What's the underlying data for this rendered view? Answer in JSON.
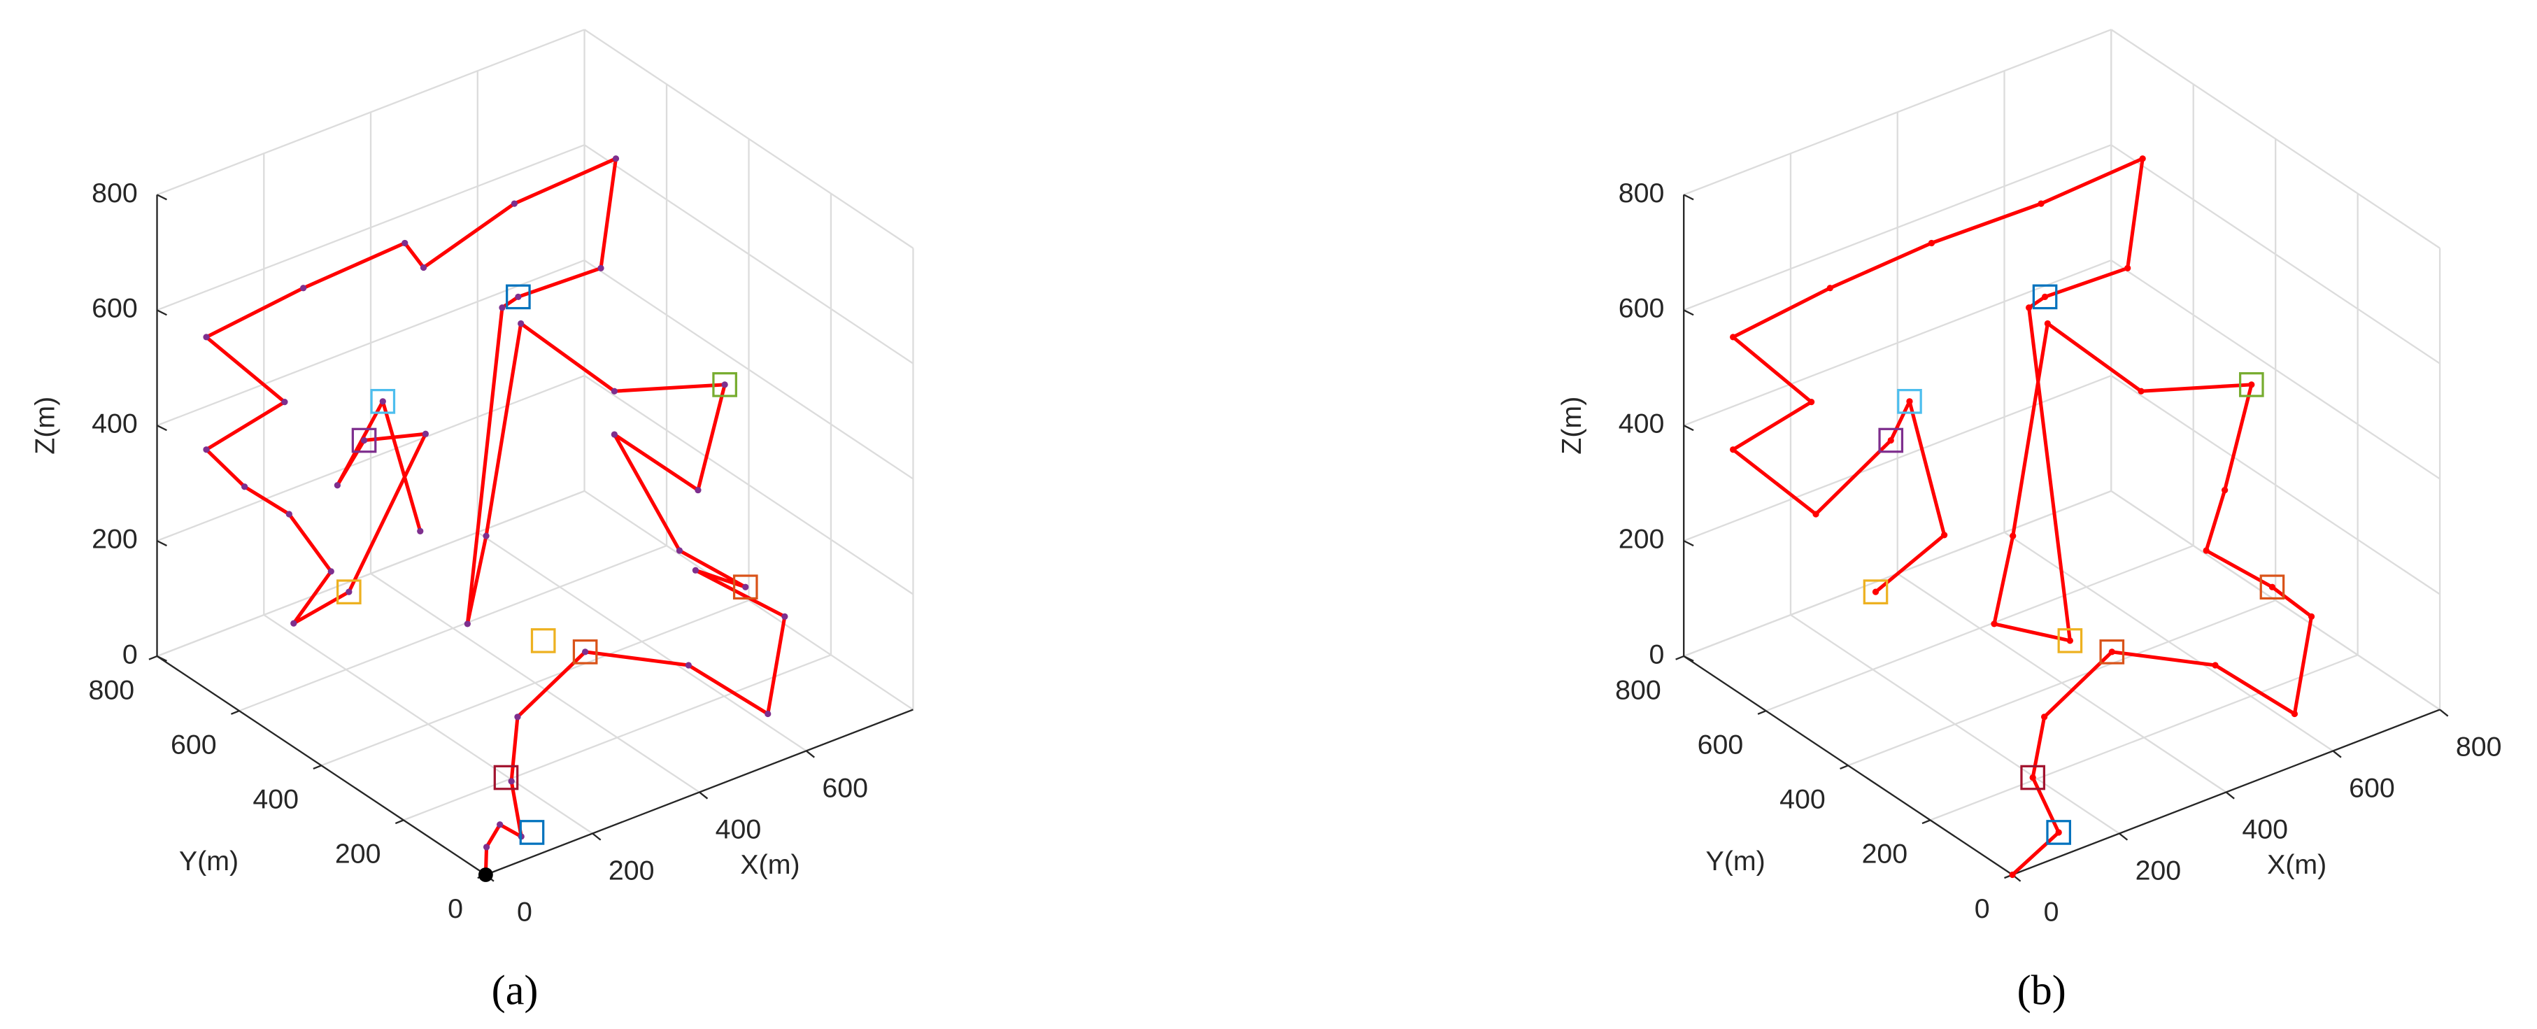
{
  "chart_data": [
    {
      "type": "line3d",
      "label": "(a)",
      "xlabel": "X(m)",
      "ylabel": "Y(m)",
      "zlabel": "Z(m)",
      "xlim": [
        0,
        800
      ],
      "ylim": [
        0,
        800
      ],
      "zlim": [
        0,
        800
      ],
      "xticks": [
        0,
        200,
        400,
        600
      ],
      "yticks": [
        0,
        200,
        400,
        600,
        800
      ],
      "zticks": [
        0,
        200,
        400,
        600,
        800
      ],
      "grid": true,
      "series": [
        {
          "color": "#ff0000",
          "marker_color": "#7e2f8e",
          "x": [
            0,
            40,
            65,
            105,
            125,
            175,
            340,
            495,
            605,
            675,
            585,
            640,
            555,
            510,
            705,
            755,
            510,
            335,
            270,
            235,
            300,
            330,
            600,
            705,
            515,
            345,
            310,
            120,
            0,
            85,
            0,
            10,
            55,
            95,
            25,
            90,
            195,
            80,
            30,
            115,
            185
          ],
          "y": [
            0,
            50,
            50,
            50,
            100,
            150,
            200,
            150,
            100,
            150,
            250,
            200,
            250,
            350,
            400,
            400,
            350,
            350,
            350,
            350,
            350,
            350,
            500,
            600,
            600,
            600,
            600,
            600,
            680,
            600,
            680,
            600,
            550,
            500,
            500,
            450,
            400,
            400,
            400,
            400,
            400
          ],
          "z": [
            0,
            10,
            40,
            5,
            70,
            140,
            170,
            115,
            15,
            135,
            200,
            175,
            245,
            415,
            225,
            390,
            490,
            670,
            325,
            185,
            710,
            718,
            600,
            705,
            695,
            645,
            700,
            690,
            610,
            505,
            415,
            385,
            345,
            255,
            190,
            245,
            505,
            535,
            475,
            590,
            340
          ]
        }
      ],
      "waypoints": {
        "x": [
          125,
          115,
          340,
          300,
          640,
          755,
          330,
          115,
          80,
          90
        ],
        "y": [
          50,
          100,
          200,
          250,
          200,
          400,
          350,
          400,
          400,
          450
        ],
        "z": [
          5,
          80,
          170,
          180,
          175,
          390,
          718,
          590,
          535,
          245
        ],
        "colors": [
          "#0072bd",
          "#a2142f",
          "#d95319",
          "#edb120",
          "#d95319",
          "#77ac30",
          "#0072bd",
          "#4dbeee",
          "#7e2f8e",
          "#edb120"
        ]
      },
      "start": {
        "x": 0,
        "y": 0,
        "z": 0,
        "color": "#000000"
      }
    },
    {
      "type": "line3d",
      "label": "(b)",
      "xlabel": "X(m)",
      "ylabel": "Y(m)",
      "zlabel": "Z(m)",
      "xlim": [
        0,
        800
      ],
      "ylim": [
        0,
        800
      ],
      "zlim": [
        0,
        800
      ],
      "xticks": [
        0,
        200,
        400,
        600,
        800
      ],
      "yticks": [
        0,
        200,
        400,
        600,
        800
      ],
      "zticks": [
        0,
        200,
        400,
        600,
        800
      ],
      "grid": true,
      "series": [
        {
          "color": "#ff0000",
          "marker_color": "#ff0000",
          "x": [
            0,
            125,
            115,
            175,
            340,
            495,
            605,
            675,
            640,
            555,
            705,
            755,
            510,
            335,
            270,
            235,
            300,
            300,
            330,
            600,
            705,
            515,
            310,
            120,
            0,
            85,
            0,
            55,
            80,
            115,
            180,
            90
          ],
          "y": [
            0,
            50,
            100,
            150,
            200,
            150,
            100,
            150,
            200,
            250,
            400,
            400,
            350,
            350,
            350,
            350,
            250,
            350,
            350,
            500,
            600,
            600,
            600,
            600,
            680,
            600,
            680,
            550,
            400,
            400,
            400,
            450
          ],
          "z": [
            0,
            5,
            80,
            140,
            170,
            115,
            15,
            135,
            175,
            245,
            225,
            390,
            490,
            670,
            325,
            185,
            180,
            710,
            718,
            600,
            705,
            695,
            700,
            690,
            610,
            505,
            415,
            345,
            535,
            590,
            335,
            245
          ]
        }
      ],
      "waypoints": {
        "x": [
          125,
          115,
          340,
          300,
          640,
          755,
          330,
          115,
          80,
          90
        ],
        "y": [
          50,
          100,
          200,
          250,
          200,
          400,
          350,
          400,
          400,
          450
        ],
        "z": [
          5,
          80,
          170,
          180,
          175,
          390,
          718,
          590,
          535,
          245
        ],
        "colors": [
          "#0072bd",
          "#a2142f",
          "#d95319",
          "#edb120",
          "#d95319",
          "#77ac30",
          "#0072bd",
          "#4dbeee",
          "#7e2f8e",
          "#edb120"
        ]
      }
    }
  ]
}
